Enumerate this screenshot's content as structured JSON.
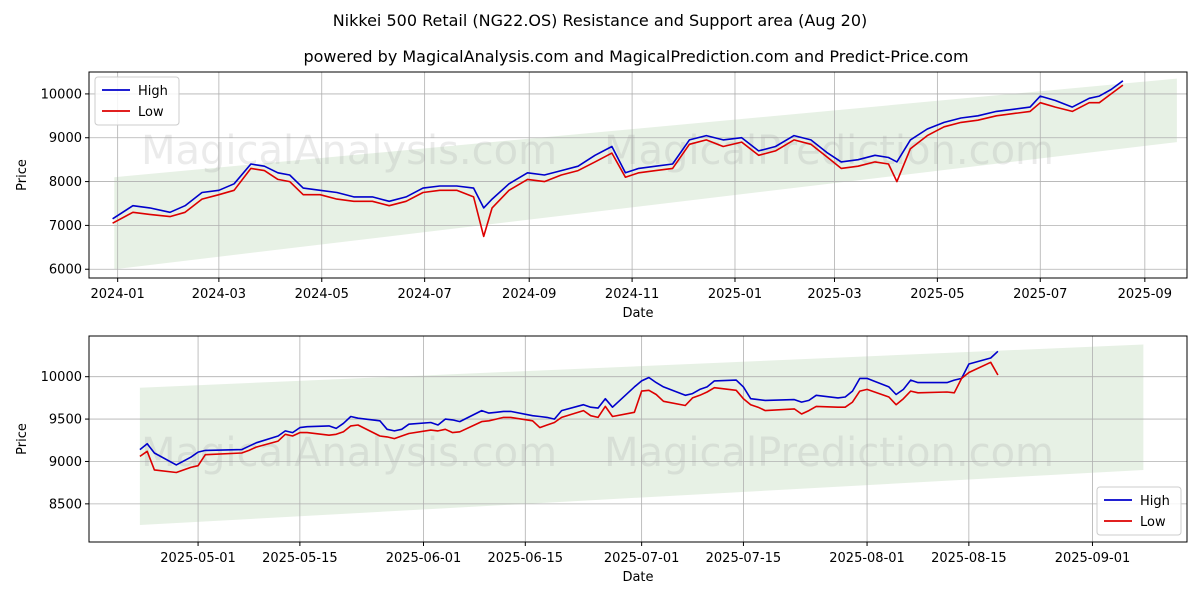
{
  "title": "Nikkei 500 Retail (NG22.OS) Resistance and Support area (Aug 20)",
  "subtitle": "powered by MagicalAnalysis.com and MagicalPrediction.com and Predict-Price.com",
  "watermarks": [
    "MagicalAnalysis.com",
    "MagicalPrediction.com"
  ],
  "colors": {
    "high": "#0000cc",
    "low": "#dd0000",
    "band": "#e3efe0",
    "grid": "#b0b0b0"
  },
  "chart_data": [
    {
      "type": "line",
      "xlabel": "Date",
      "ylabel": "Price",
      "xlim": [
        "2023-12-15",
        "2025-09-26"
      ],
      "ylim": [
        5800,
        10500
      ],
      "grid": true,
      "legend": "top-left",
      "xticks": [
        "2024-01",
        "2024-03",
        "2024-05",
        "2024-07",
        "2024-09",
        "2024-11",
        "2025-01",
        "2025-03",
        "2025-05",
        "2025-07",
        "2025-09"
      ],
      "yticks": [
        6000,
        7000,
        8000,
        9000,
        10000
      ],
      "band": {
        "start": "2023-12-30",
        "end": "2025-09-20",
        "upper": [
          8100,
          10350
        ],
        "lower": [
          6000,
          8900
        ]
      },
      "series": [
        {
          "name": "High",
          "x": [
            "2023-12-29",
            "2024-01-10",
            "2024-01-20",
            "2024-02-01",
            "2024-02-10",
            "2024-02-20",
            "2024-03-01",
            "2024-03-10",
            "2024-03-20",
            "2024-03-28",
            "2024-04-05",
            "2024-04-12",
            "2024-04-20",
            "2024-04-30",
            "2024-05-10",
            "2024-05-20",
            "2024-05-31",
            "2024-06-10",
            "2024-06-20",
            "2024-06-30",
            "2024-07-10",
            "2024-07-20",
            "2024-07-30",
            "2024-08-05",
            "2024-08-10",
            "2024-08-20",
            "2024-08-31",
            "2024-09-10",
            "2024-09-20",
            "2024-09-30",
            "2024-10-10",
            "2024-10-20",
            "2024-10-28",
            "2024-11-05",
            "2024-11-15",
            "2024-11-25",
            "2024-12-05",
            "2024-12-15",
            "2024-12-25",
            "2025-01-05",
            "2025-01-15",
            "2025-01-25",
            "2025-02-05",
            "2025-02-15",
            "2025-02-25",
            "2025-03-05",
            "2025-03-15",
            "2025-03-25",
            "2025-04-02",
            "2025-04-07",
            "2025-04-15",
            "2025-04-25",
            "2025-05-05",
            "2025-05-15",
            "2025-05-25",
            "2025-06-05",
            "2025-06-15",
            "2025-06-25",
            "2025-07-01",
            "2025-07-10",
            "2025-07-20",
            "2025-07-30",
            "2025-08-05",
            "2025-08-12",
            "2025-08-19"
          ],
          "values": [
            7150,
            7450,
            7400,
            7300,
            7450,
            7750,
            7800,
            7950,
            8400,
            8350,
            8200,
            8150,
            7850,
            7800,
            7750,
            7650,
            7650,
            7550,
            7650,
            7850,
            7900,
            7900,
            7850,
            7400,
            7600,
            7950,
            8200,
            8150,
            8250,
            8350,
            8600,
            8800,
            8200,
            8300,
            8350,
            8400,
            8950,
            9050,
            8950,
            9000,
            8700,
            8800,
            9050,
            8950,
            8650,
            8450,
            8500,
            8600,
            8550,
            8450,
            8950,
            9200,
            9350,
            9450,
            9500,
            9600,
            9650,
            9700,
            9950,
            9850,
            9700,
            9900,
            9950,
            10100,
            10300
          ]
        },
        {
          "name": "Low",
          "x": [
            "2023-12-29",
            "2024-01-10",
            "2024-01-20",
            "2024-02-01",
            "2024-02-10",
            "2024-02-20",
            "2024-03-01",
            "2024-03-10",
            "2024-03-20",
            "2024-03-28",
            "2024-04-05",
            "2024-04-12",
            "2024-04-20",
            "2024-04-30",
            "2024-05-10",
            "2024-05-20",
            "2024-05-31",
            "2024-06-10",
            "2024-06-20",
            "2024-06-30",
            "2024-07-10",
            "2024-07-20",
            "2024-07-30",
            "2024-08-05",
            "2024-08-10",
            "2024-08-20",
            "2024-08-31",
            "2024-09-10",
            "2024-09-20",
            "2024-09-30",
            "2024-10-10",
            "2024-10-20",
            "2024-10-28",
            "2024-11-05",
            "2024-11-15",
            "2024-11-25",
            "2024-12-05",
            "2024-12-15",
            "2024-12-25",
            "2025-01-05",
            "2025-01-15",
            "2025-01-25",
            "2025-02-05",
            "2025-02-15",
            "2025-02-25",
            "2025-03-05",
            "2025-03-15",
            "2025-03-25",
            "2025-04-02",
            "2025-04-07",
            "2025-04-15",
            "2025-04-25",
            "2025-05-05",
            "2025-05-15",
            "2025-05-25",
            "2025-06-05",
            "2025-06-15",
            "2025-06-25",
            "2025-07-01",
            "2025-07-10",
            "2025-07-20",
            "2025-07-30",
            "2025-08-05",
            "2025-08-12",
            "2025-08-19"
          ],
          "values": [
            7050,
            7300,
            7250,
            7200,
            7300,
            7600,
            7700,
            7800,
            8300,
            8250,
            8050,
            8000,
            7700,
            7700,
            7600,
            7550,
            7550,
            7450,
            7550,
            7750,
            7800,
            7800,
            7650,
            6750,
            7400,
            7800,
            8050,
            8000,
            8150,
            8250,
            8450,
            8650,
            8100,
            8200,
            8250,
            8300,
            8850,
            8950,
            8800,
            8900,
            8600,
            8700,
            8950,
            8850,
            8550,
            8300,
            8350,
            8450,
            8400,
            8000,
            8750,
            9050,
            9250,
            9350,
            9400,
            9500,
            9550,
            9600,
            9800,
            9700,
            9600,
            9800,
            9800,
            10000,
            10200
          ]
        }
      ]
    },
    {
      "type": "line",
      "xlabel": "Date",
      "ylabel": "Price",
      "xlim": [
        "2025-04-16",
        "2025-09-14"
      ],
      "ylim": [
        8050,
        10480
      ],
      "grid": true,
      "legend": "bottom-right",
      "xticks": [
        "2025-05-01",
        "2025-05-15",
        "2025-06-01",
        "2025-06-15",
        "2025-07-01",
        "2025-07-15",
        "2025-08-01",
        "2025-08-15",
        "2025-09-01"
      ],
      "yticks": [
        8500,
        9000,
        9500,
        10000
      ],
      "band": {
        "start": "2025-04-23",
        "end": "2025-09-08",
        "upper": [
          9870,
          10380
        ],
        "lower": [
          8250,
          8900
        ]
      },
      "series": [
        {
          "name": "High",
          "x": [
            "2025-04-23",
            "2025-04-24",
            "2025-04-25",
            "2025-04-28",
            "2025-04-30",
            "2025-05-01",
            "2025-05-02",
            "2025-05-07",
            "2025-05-08",
            "2025-05-09",
            "2025-05-12",
            "2025-05-13",
            "2025-05-14",
            "2025-05-15",
            "2025-05-16",
            "2025-05-19",
            "2025-05-20",
            "2025-05-21",
            "2025-05-22",
            "2025-05-23",
            "2025-05-26",
            "2025-05-27",
            "2025-05-28",
            "2025-05-29",
            "2025-05-30",
            "2025-06-02",
            "2025-06-03",
            "2025-06-04",
            "2025-06-05",
            "2025-06-06",
            "2025-06-09",
            "2025-06-10",
            "2025-06-11",
            "2025-06-12",
            "2025-06-13",
            "2025-06-16",
            "2025-06-17",
            "2025-06-18",
            "2025-06-19",
            "2025-06-20",
            "2025-06-23",
            "2025-06-24",
            "2025-06-25",
            "2025-06-26",
            "2025-06-27",
            "2025-06-30",
            "2025-07-01",
            "2025-07-02",
            "2025-07-03",
            "2025-07-04",
            "2025-07-07",
            "2025-07-08",
            "2025-07-09",
            "2025-07-10",
            "2025-07-11",
            "2025-07-14",
            "2025-07-15",
            "2025-07-16",
            "2025-07-17",
            "2025-07-18",
            "2025-07-22",
            "2025-07-23",
            "2025-07-24",
            "2025-07-25",
            "2025-07-28",
            "2025-07-29",
            "2025-07-30",
            "2025-07-31",
            "2025-08-01",
            "2025-08-04",
            "2025-08-05",
            "2025-08-06",
            "2025-08-07",
            "2025-08-08",
            "2025-08-12",
            "2025-08-13",
            "2025-08-14",
            "2025-08-15",
            "2025-08-18",
            "2025-08-19"
          ],
          "values": [
            9140,
            9210,
            9100,
            8960,
            9050,
            9110,
            9130,
            9140,
            9180,
            9220,
            9300,
            9360,
            9340,
            9400,
            9410,
            9420,
            9390,
            9450,
            9530,
            9510,
            9480,
            9380,
            9360,
            9380,
            9440,
            9460,
            9430,
            9500,
            9490,
            9470,
            9600,
            9570,
            9580,
            9590,
            9590,
            9540,
            9530,
            9520,
            9500,
            9600,
            9670,
            9640,
            9630,
            9740,
            9640,
            9880,
            9950,
            9990,
            9930,
            9880,
            9780,
            9800,
            9850,
            9880,
            9950,
            9960,
            9880,
            9740,
            9730,
            9720,
            9730,
            9700,
            9720,
            9780,
            9750,
            9760,
            9830,
            9980,
            9980,
            9880,
            9790,
            9850,
            9960,
            9930,
            9930,
            9960,
            9980,
            10150,
            10220,
            10300
          ]
        },
        {
          "name": "Low",
          "x": [
            "2025-04-23",
            "2025-04-24",
            "2025-04-25",
            "2025-04-28",
            "2025-04-30",
            "2025-05-01",
            "2025-05-02",
            "2025-05-07",
            "2025-05-08",
            "2025-05-09",
            "2025-05-12",
            "2025-05-13",
            "2025-05-14",
            "2025-05-15",
            "2025-05-16",
            "2025-05-19",
            "2025-05-20",
            "2025-05-21",
            "2025-05-22",
            "2025-05-23",
            "2025-05-26",
            "2025-05-27",
            "2025-05-28",
            "2025-05-29",
            "2025-05-30",
            "2025-06-02",
            "2025-06-03",
            "2025-06-04",
            "2025-06-05",
            "2025-06-06",
            "2025-06-09",
            "2025-06-10",
            "2025-06-11",
            "2025-06-12",
            "2025-06-13",
            "2025-06-16",
            "2025-06-17",
            "2025-06-18",
            "2025-06-19",
            "2025-06-20",
            "2025-06-23",
            "2025-06-24",
            "2025-06-25",
            "2025-06-26",
            "2025-06-27",
            "2025-06-30",
            "2025-07-01",
            "2025-07-02",
            "2025-07-03",
            "2025-07-04",
            "2025-07-07",
            "2025-07-08",
            "2025-07-09",
            "2025-07-10",
            "2025-07-11",
            "2025-07-14",
            "2025-07-15",
            "2025-07-16",
            "2025-07-17",
            "2025-07-18",
            "2025-07-22",
            "2025-07-23",
            "2025-07-24",
            "2025-07-25",
            "2025-07-28",
            "2025-07-29",
            "2025-07-30",
            "2025-07-31",
            "2025-08-01",
            "2025-08-04",
            "2025-08-05",
            "2025-08-06",
            "2025-08-07",
            "2025-08-08",
            "2025-08-12",
            "2025-08-13",
            "2025-08-14",
            "2025-08-15",
            "2025-08-18",
            "2025-08-19"
          ],
          "values": [
            9060,
            9120,
            8900,
            8870,
            8930,
            8950,
            9080,
            9100,
            9130,
            9170,
            9240,
            9320,
            9300,
            9340,
            9340,
            9310,
            9320,
            9350,
            9420,
            9430,
            9300,
            9290,
            9270,
            9300,
            9330,
            9370,
            9360,
            9380,
            9340,
            9350,
            9470,
            9480,
            9500,
            9520,
            9520,
            9480,
            9400,
            9430,
            9460,
            9520,
            9600,
            9540,
            9520,
            9650,
            9530,
            9580,
            9830,
            9840,
            9790,
            9710,
            9660,
            9750,
            9780,
            9820,
            9870,
            9840,
            9740,
            9670,
            9640,
            9600,
            9620,
            9560,
            9600,
            9650,
            9640,
            9640,
            9700,
            9830,
            9850,
            9760,
            9670,
            9740,
            9830,
            9810,
            9820,
            9810,
            9980,
            10050,
            10170,
            10020
          ]
        }
      ]
    }
  ]
}
